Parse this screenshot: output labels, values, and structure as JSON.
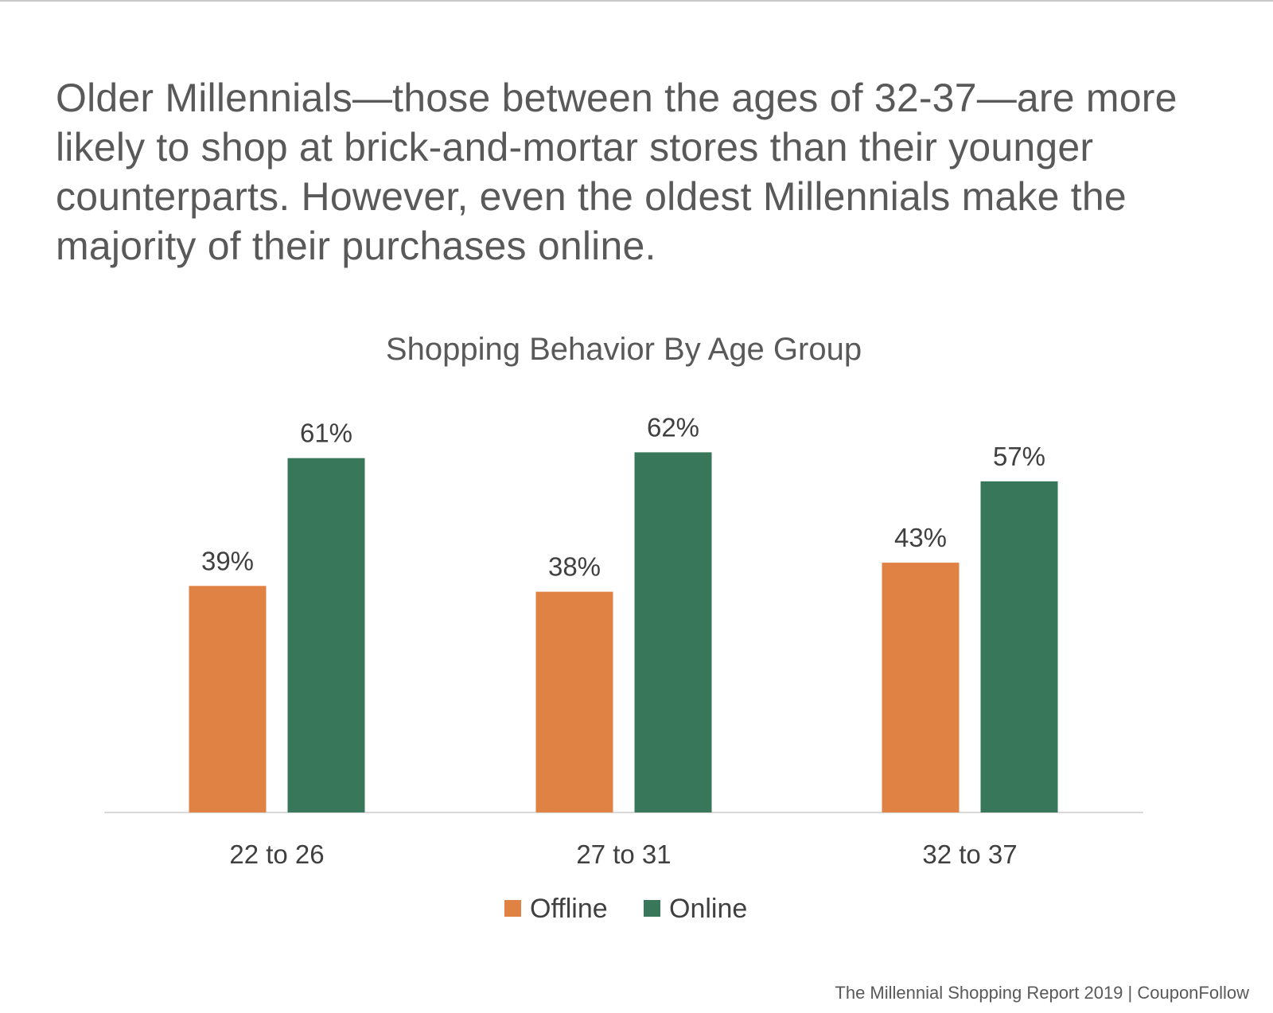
{
  "headline": "Older Millennials—those between the ages of 32-37—are more likely to shop at brick-and-mortar stores than their younger counterparts. However, even the oldest Millennials make the majority of their purchases online.",
  "footer": "The Millennial Shopping Report 2019 | CouponFollow",
  "colors": {
    "offline": "#E08244",
    "online": "#39775A",
    "text": "#595959",
    "label": "#404040",
    "axis": "#d9d9d9"
  },
  "chart_data": {
    "type": "bar",
    "title": "Shopping Behavior By Age Group",
    "categories": [
      "22 to 26",
      "27 to 31",
      "32 to 37"
    ],
    "series": [
      {
        "name": "Offline",
        "values": [
          39,
          38,
          43
        ],
        "labels": [
          "39%",
          "38%",
          "43%"
        ]
      },
      {
        "name": "Online",
        "values": [
          61,
          62,
          57
        ],
        "labels": [
          "61%",
          "62%",
          "57%"
        ]
      }
    ],
    "xlabel": "",
    "ylabel": "",
    "ylim": [
      0,
      62
    ],
    "grid": false,
    "legend": "bottom"
  }
}
